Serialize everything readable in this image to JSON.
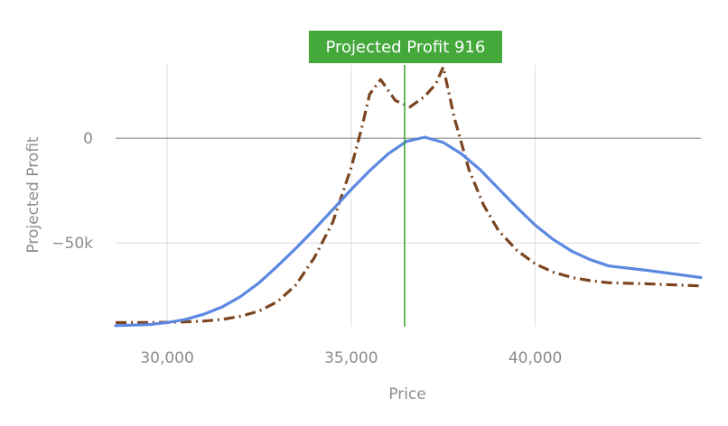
{
  "chart_data": {
    "type": "line",
    "xlabel": "Price",
    "ylabel": "Projected Profit",
    "xlim": [
      28600,
      44500
    ],
    "ylim": [
      -90000,
      35000
    ],
    "x_ticks": [
      {
        "value": 30000,
        "label": "30,000"
      },
      {
        "value": 35000,
        "label": "35,000"
      },
      {
        "value": 40000,
        "label": "40,000"
      }
    ],
    "y_ticks": [
      {
        "value": 0,
        "label": "0"
      },
      {
        "value": -50000,
        "label": "−50k"
      }
    ],
    "marker": {
      "x": 36450,
      "label": "Projected Profit 916",
      "color": "#44a83a"
    },
    "zero_line_color": "#888888",
    "grid_color": "#dcdcdc",
    "series": [
      {
        "style": "dashdot",
        "color": "#7b4520",
        "x": [
          28600,
          29500,
          30000,
          30500,
          31000,
          31500,
          32000,
          32500,
          33000,
          33500,
          34000,
          34500,
          35000,
          35300,
          35500,
          35800,
          36200,
          36600,
          37000,
          37300,
          37500,
          37800,
          38200,
          38600,
          39000,
          39500,
          40000,
          40500,
          41000,
          41500,
          42000,
          43000,
          44500
        ],
        "y": [
          -88000,
          -88000,
          -87900,
          -87700,
          -87300,
          -86500,
          -85000,
          -82500,
          -78000,
          -70000,
          -57000,
          -40000,
          -14000,
          6000,
          21000,
          28000,
          18000,
          15000,
          20000,
          26000,
          34000,
          10000,
          -15000,
          -32000,
          -44000,
          -53500,
          -60000,
          -64000,
          -66500,
          -68000,
          -69000,
          -69500,
          -70500
        ]
      },
      {
        "style": "solid",
        "color": "#5b88e0",
        "x": [
          28600,
          29500,
          30000,
          30500,
          31000,
          31500,
          32000,
          32500,
          33000,
          33500,
          34000,
          34500,
          35000,
          35500,
          36000,
          36500,
          37000,
          37500,
          38000,
          38500,
          39000,
          39500,
          40000,
          40500,
          41000,
          41500,
          42000,
          43000,
          44500
        ],
        "y": [
          -89500,
          -89000,
          -88000,
          -86500,
          -84000,
          -80500,
          -75500,
          -69000,
          -61000,
          -52500,
          -43500,
          -34000,
          -24500,
          -15500,
          -7500,
          -1500,
          500,
          -2000,
          -7500,
          -15000,
          -24000,
          -33000,
          -41500,
          -48500,
          -54000,
          -58000,
          -61000,
          -63000,
          -66500
        ]
      }
    ]
  }
}
